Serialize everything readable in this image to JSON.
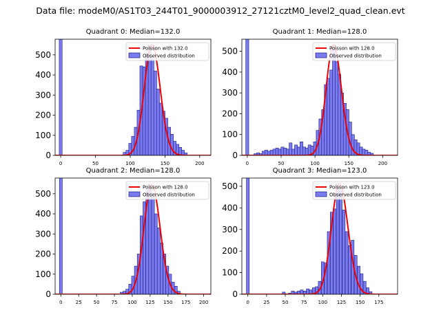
{
  "suptitle": "Data file: modeM0/AS1T03_244T01_9000003912_27121cztM0_level2_quad_clean.evt",
  "colors": {
    "hist_fill": "#7b7bf0",
    "hist_edge": "#1a1a80",
    "poisson_line": "#ee0000"
  },
  "chart_data": [
    {
      "type": "bar",
      "title": "Quadrant 0: Median=132.0",
      "legend": [
        "Poisson with 132.0",
        "Observed distribution"
      ],
      "legend_position": "top-right",
      "xlim": [
        -8,
        216
      ],
      "ylim": [
        0,
        578
      ],
      "xticks": [
        0,
        50,
        100,
        150,
        200
      ],
      "yticks": [
        0,
        100,
        200,
        300,
        400,
        500
      ],
      "bin_width": 4.2,
      "poisson_mean": 132.0,
      "poisson_peak": 550,
      "bins_x": [
        0,
        92,
        96,
        100,
        104,
        108,
        112,
        116,
        120,
        124,
        128,
        132,
        136,
        140,
        144,
        148,
        152,
        156,
        160,
        164,
        168,
        172,
        176,
        180
      ],
      "bins_y": [
        578,
        15,
        25,
        60,
        95,
        140,
        225,
        445,
        440,
        505,
        550,
        480,
        420,
        330,
        260,
        220,
        185,
        140,
        105,
        70,
        55,
        40,
        25,
        12
      ]
    },
    {
      "type": "bar",
      "title": "Quadrant 1: Median=128.0",
      "legend": [
        "Poisson with 128.0",
        "Observed distribution"
      ],
      "legend_position": "top-right",
      "xlim": [
        -8,
        222
      ],
      "ylim": [
        0,
        558
      ],
      "xticks": [
        0,
        50,
        100,
        150,
        200
      ],
      "yticks": [
        0,
        100,
        200,
        300,
        400,
        500
      ],
      "bin_width": 4.4,
      "poisson_mean": 128.0,
      "poisson_peak": 530,
      "bins_x": [
        0,
        12,
        16,
        20,
        24,
        28,
        32,
        36,
        40,
        44,
        48,
        52,
        56,
        60,
        64,
        68,
        72,
        76,
        80,
        84,
        88,
        92,
        96,
        100,
        104,
        108,
        112,
        116,
        120,
        124,
        128,
        132,
        136,
        140,
        144,
        148,
        152,
        156,
        160,
        164,
        168,
        172,
        176,
        180,
        184
      ],
      "bins_y": [
        558,
        8,
        12,
        8,
        20,
        25,
        20,
        25,
        30,
        35,
        30,
        40,
        35,
        30,
        60,
        30,
        50,
        40,
        65,
        40,
        35,
        50,
        45,
        65,
        120,
        175,
        220,
        340,
        370,
        410,
        530,
        450,
        390,
        300,
        250,
        220,
        160,
        100,
        75,
        60,
        40,
        30,
        25,
        15,
        10
      ]
    },
    {
      "type": "bar",
      "title": "Quadrant 2: Median=128.0",
      "legend": [
        "Poisson with 128.0",
        "Observed distribution"
      ],
      "legend_position": "top-right",
      "xlim": [
        -8,
        210
      ],
      "ylim": [
        0,
        578
      ],
      "xticks": [
        0,
        25,
        50,
        75,
        100,
        125,
        150,
        175,
        200
      ],
      "yticks": [
        0,
        100,
        200,
        300,
        400,
        500
      ],
      "bin_width": 4.0,
      "poisson_mean": 128.0,
      "poisson_peak": 545,
      "bins_x": [
        0,
        85,
        89,
        93,
        97,
        101,
        105,
        109,
        113,
        117,
        121,
        125,
        129,
        133,
        137,
        141,
        145,
        149,
        153,
        157,
        161,
        165
      ],
      "bins_y": [
        578,
        10,
        15,
        25,
        50,
        90,
        140,
        200,
        390,
        460,
        520,
        545,
        480,
        400,
        330,
        255,
        200,
        140,
        100,
        60,
        40,
        15
      ]
    },
    {
      "type": "bar",
      "title": "Quadrant 3: Median=123.0",
      "legend": [
        "Poisson with 123.0",
        "Observed distribution"
      ],
      "legend_position": "top-right",
      "xlim": [
        -8,
        200
      ],
      "ylim": [
        0,
        538
      ],
      "xticks": [
        0,
        25,
        50,
        75,
        100,
        125,
        150,
        175
      ],
      "yticks": [
        0,
        100,
        200,
        300,
        400,
        500
      ],
      "bin_width": 3.8,
      "poisson_mean": 123.0,
      "poisson_peak": 510,
      "bins_x": [
        0,
        48,
        56,
        60,
        64,
        68,
        72,
        76,
        80,
        84,
        88,
        92,
        96,
        100,
        104,
        108,
        112,
        116,
        120,
        124,
        128,
        132,
        136,
        140,
        144,
        148,
        152,
        156,
        160,
        164
      ],
      "bins_y": [
        538,
        10,
        5,
        15,
        10,
        15,
        20,
        15,
        25,
        20,
        30,
        35,
        60,
        150,
        145,
        290,
        380,
        395,
        510,
        480,
        390,
        290,
        225,
        250,
        180,
        130,
        95,
        60,
        30,
        12
      ]
    }
  ]
}
